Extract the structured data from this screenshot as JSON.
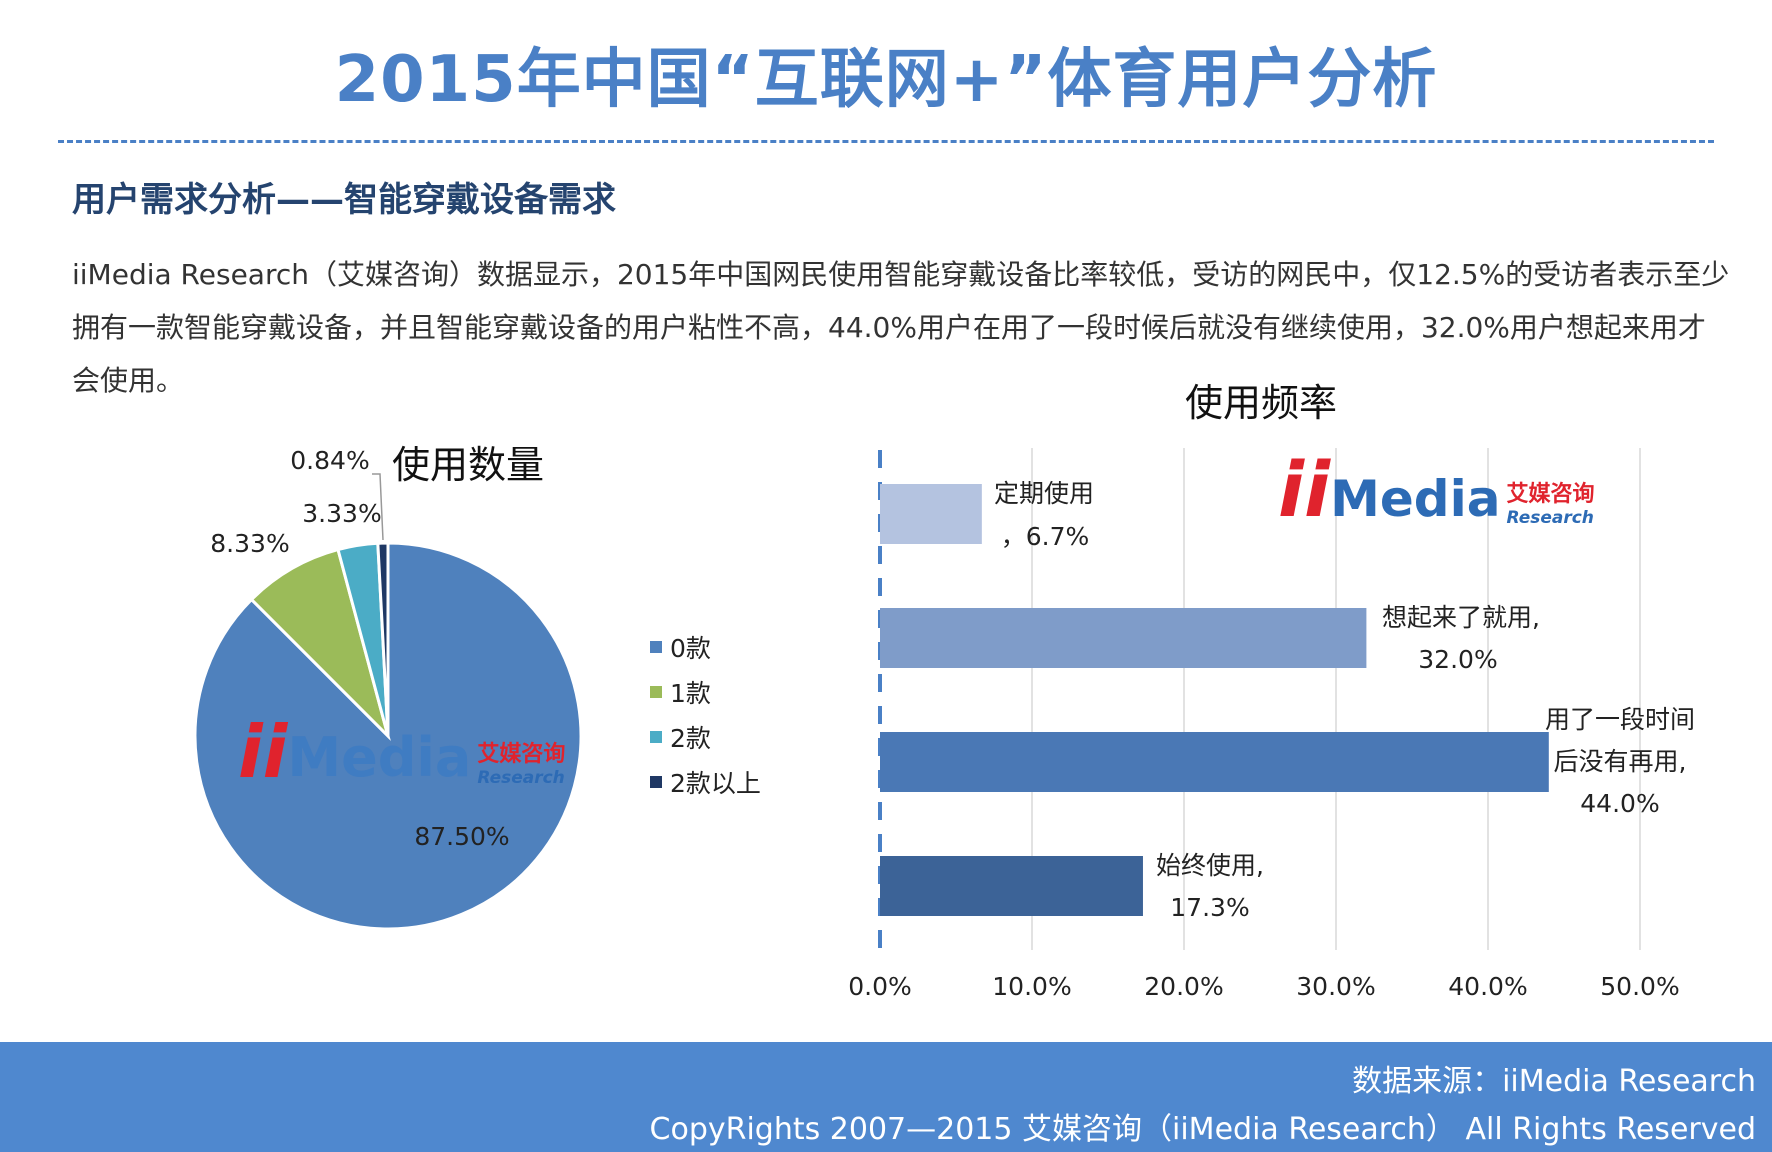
{
  "header": {
    "title": "2015年中国“互联网+”体育用户分析",
    "section_title": "用户需求分析——智能穿戴设备需求",
    "intro": "iiMedia Research（艾媒咨询）数据显示，2015年中国网民使用智能穿戴设备比率较低，受访的网民中，仅12.5%的受访者表示至少拥有一款智能穿戴设备，并且智能穿戴设备的用户粘性不高，44.0%用户在用了一段时候后就没有继续使用，32.0%用户想起来用才会使用。"
  },
  "logo": {
    "ii": "ii",
    "media": "Media",
    "cn": "艾媒咨询",
    "en": "Research"
  },
  "chart_data": [
    {
      "type": "pie",
      "title": "使用数量",
      "labels": [
        "0款",
        "1款",
        "2款",
        "2款以上"
      ],
      "values": [
        87.5,
        8.33,
        3.33,
        0.84
      ],
      "value_labels": [
        "87.50%",
        "8.33%",
        "3.33%",
        "0.84%"
      ],
      "colors": [
        "#4f81bd",
        "#9bbb59",
        "#4bacc6",
        "#1f3864"
      ],
      "legend": "right"
    },
    {
      "type": "bar",
      "orientation": "horizontal",
      "title": "使用频率",
      "categories": [
        "定期使用",
        "想起来了就用",
        "用了一段时间后没有再用",
        "始终使用"
      ],
      "values": [
        6.7,
        32.0,
        44.0,
        17.3
      ],
      "data_labels": [
        [
          "定期使用",
          "，6.7%"
        ],
        [
          "想起来了就用,",
          "32.0%"
        ],
        [
          "用了一段时间",
          "后没有再用,",
          "44.0%"
        ],
        [
          "始终使用,",
          "17.3%"
        ]
      ],
      "colors": [
        "#b4c3e0",
        "#7f9cc9",
        "#4a78b5",
        "#3c6397"
      ],
      "xlim": [
        0,
        50
      ],
      "xticks": [
        "0.0%",
        "10.0%",
        "20.0%",
        "30.0%",
        "40.0%",
        "50.0%"
      ],
      "grid": true
    }
  ],
  "footer": {
    "source": "数据来源：iiMedia Research",
    "copyright": "CopyRights 2007—2015 艾媒咨询（iiMedia Research） All Rights Reserved"
  }
}
